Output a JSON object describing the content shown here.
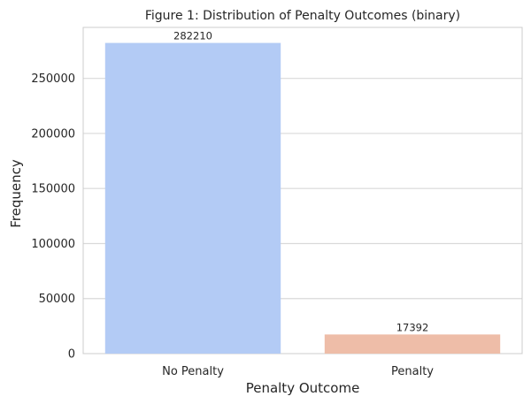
{
  "chart_data": {
    "type": "bar",
    "title": "Figure 1: Distribution of Penalty Outcomes (binary)",
    "xlabel": "Penalty Outcome",
    "ylabel": "Frequency",
    "categories": [
      "No Penalty",
      "Penalty"
    ],
    "values": [
      282210,
      17392
    ],
    "data_labels": [
      "282210",
      "17392"
    ],
    "colors": [
      "#b3cbf5",
      "#eebda8"
    ],
    "ylim": [
      0,
      296310
    ],
    "yticks": [
      0,
      50000,
      100000,
      150000,
      200000,
      250000
    ],
    "ytick_labels": [
      "0",
      "50000",
      "100000",
      "150000",
      "200000",
      "250000"
    ],
    "grid": true,
    "legend": "none"
  }
}
